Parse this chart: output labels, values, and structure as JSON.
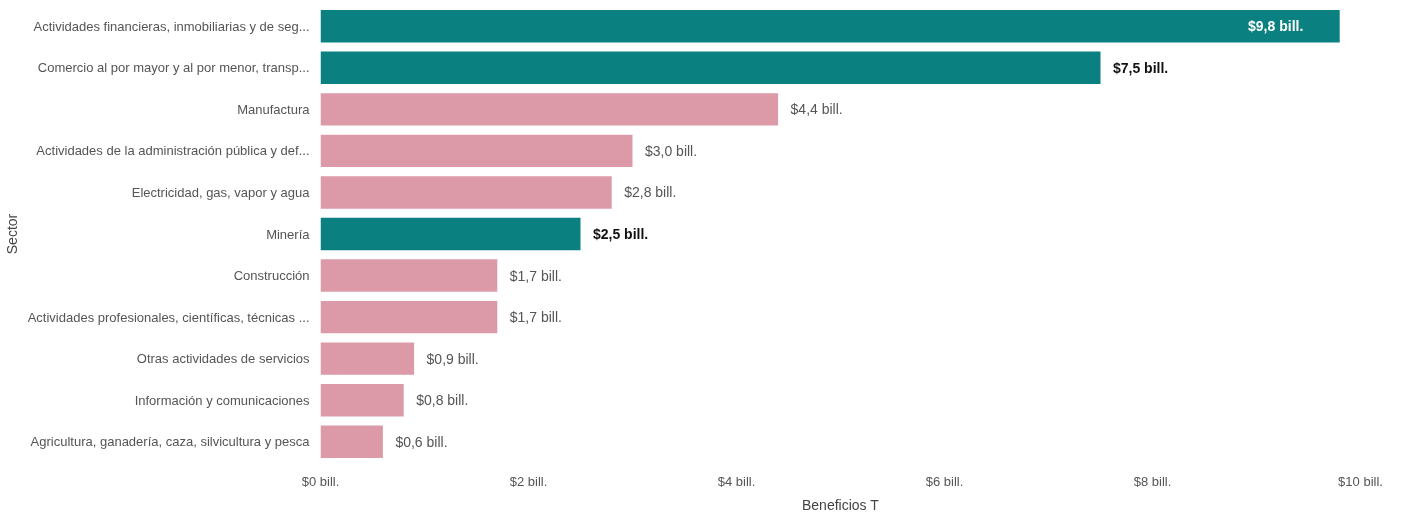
{
  "chart_data": {
    "type": "bar",
    "orientation": "horizontal",
    "xlabel": "Beneficios T",
    "ylabel": "Sector",
    "categories": [
      "Actividades financieras, inmobiliarias y de seg...",
      "Comercio al por mayor y al por menor, transp...",
      "Manufactura",
      "Actividades de la administración pública y def...",
      "Electricidad, gas, vapor y agua",
      "Minería",
      "Construcción",
      "Actividades profesionales, científicas, técnicas ...",
      "Otras actividades de servicios",
      "Información y comunicaciones",
      "Agricultura, ganadería, caza, silvicultura y pesca"
    ],
    "values": [
      9.8,
      7.5,
      4.4,
      3.0,
      2.8,
      2.5,
      1.7,
      1.7,
      0.9,
      0.8,
      0.6
    ],
    "colors": [
      "#0a8080",
      "#0a8080",
      "#dc9aa8",
      "#dc9aa8",
      "#dc9aa8",
      "#0a8080",
      "#dc9aa8",
      "#dc9aa8",
      "#dc9aa8",
      "#dc9aa8",
      "#dc9aa8"
    ],
    "value_labels": [
      "$9,8 bill.",
      "$7,5 bill.",
      "$4,4 bill.",
      "$3,0 bill.",
      "$2,8 bill.",
      "$2,5 bill.",
      "$1,7 bill.",
      "$1,7 bill.",
      "$0,9 bill.",
      "$0,8 bill.",
      "$0,6 bill."
    ],
    "xlim": [
      0,
      10
    ],
    "xticks": [
      {
        "value": 0,
        "label": "$0 bill."
      },
      {
        "value": 2,
        "label": "$2 bill."
      },
      {
        "value": 4,
        "label": "$4 bill."
      },
      {
        "value": 6,
        "label": "$6 bill."
      },
      {
        "value": 8,
        "label": "$8 bill."
      },
      {
        "value": 10,
        "label": "$10 bill."
      }
    ],
    "grid": false
  }
}
